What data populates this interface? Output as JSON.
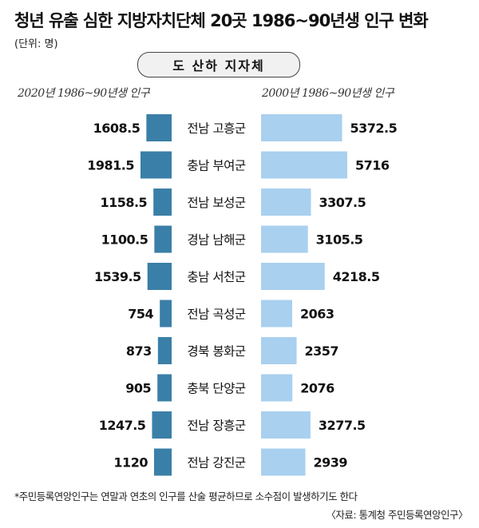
{
  "title": "청년 유출 심한 지방자치단체 20곳 1986~90년생 인구 변화",
  "unit": "(단위: 명)",
  "header": "도 산하 지자체",
  "footnote": "*주민등록연앙인구는 연말과 연초의 인구를 산술 평균하므로 소수점이 발생하기도 한다",
  "source": "〈자료: 통계청 주민등록연앙인구〉",
  "colors": {
    "left_bar": "#3a7fa8",
    "right_bar": "#a9d0ef"
  },
  "chart_data": {
    "type": "bar",
    "categories": [
      "전남 고흥군",
      "충남 부여군",
      "전남 보성군",
      "경남 남해군",
      "충남 서천군",
      "전남 곡성군",
      "경북 봉화군",
      "충북 단양군",
      "전남 장흥군",
      "전남 강진군"
    ],
    "series": [
      {
        "name": "2020년 1986~90년생 인구",
        "values": [
          1608.5,
          1981.5,
          1158.5,
          1100.5,
          1539.5,
          754,
          873,
          905,
          1247.5,
          1120
        ],
        "labels": [
          "1608.5",
          "1981.5",
          "1158.5",
          "1100.5",
          "1539.5",
          "754",
          "873",
          "905",
          "1247.5",
          "1120"
        ]
      },
      {
        "name": "2000년 1986~90년생 인구",
        "values": [
          5372.5,
          5716,
          3307.5,
          3105.5,
          4218.5,
          2063,
          2357,
          2076,
          3277.5,
          2939
        ],
        "labels": [
          "5372.5",
          "5716",
          "3307.5",
          "3105.5",
          "4218.5",
          "2063",
          "2357",
          "2076",
          "3277.5",
          "2939"
        ]
      }
    ]
  }
}
